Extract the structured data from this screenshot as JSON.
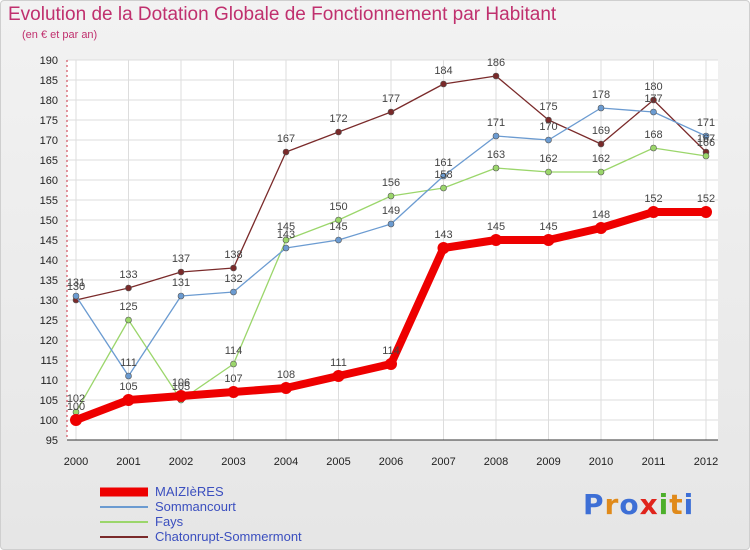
{
  "colors": {
    "title": "#c0306e",
    "legend_text": "#3b4fbf"
  },
  "logo": {
    "text": "Proxiti",
    "letter_colors": [
      "#3d6fd6",
      "#e08a1a",
      "#3d6fd6",
      "#e0241c",
      "#4caf2a",
      "#e08a1a",
      "#3d6fd6"
    ]
  },
  "chart_data": {
    "type": "line",
    "title": "Evolution de la Dotation Globale de Fonctionnement par Habitant",
    "subtitle": "(en € et par an)",
    "xlabel": "",
    "ylabel": "",
    "x": [
      "2000",
      "2001",
      "2002",
      "2003",
      "2004",
      "2005",
      "2006",
      "2007",
      "2008",
      "2009",
      "2010",
      "2011",
      "2012"
    ],
    "ylim": [
      95,
      190
    ],
    "yticks": [
      "95",
      "100",
      "105",
      "110",
      "115",
      "120",
      "125",
      "130",
      "135",
      "140",
      "145",
      "150",
      "155",
      "160",
      "165",
      "170",
      "175",
      "180",
      "185",
      "190"
    ],
    "grid": true,
    "legend_position": "bottom-left",
    "series": [
      {
        "name": "MAIZIèRES",
        "color": "#ee0000",
        "thick": true,
        "values": [
          100,
          105,
          106,
          107,
          108,
          111,
          114,
          143,
          145,
          145,
          148,
          152,
          152
        ],
        "labels": [
          "100",
          "105",
          "106",
          "107",
          "108",
          "111",
          "114",
          "143",
          "145",
          "145",
          "148",
          "152",
          "152"
        ]
      },
      {
        "name": "Sommancourt",
        "color": "#6b9bd1",
        "thick": false,
        "values": [
          131,
          111,
          131,
          132,
          143,
          145,
          149,
          161,
          171,
          170,
          178,
          177,
          171
        ],
        "labels": [
          "131",
          "111",
          "131",
          "132",
          "143",
          "145",
          "149",
          "161",
          "171",
          "170",
          "178",
          "177",
          "171"
        ]
      },
      {
        "name": "Fays",
        "color": "#9bd66b",
        "thick": false,
        "values": [
          102,
          125,
          105,
          114,
          145,
          150,
          156,
          158,
          163,
          162,
          162,
          168,
          166
        ],
        "labels": [
          "102",
          "125",
          "105",
          "114",
          "145",
          "150",
          "156",
          "158",
          "163",
          "162",
          "162",
          "168",
          "166"
        ]
      },
      {
        "name": "Chatonrupt-Sommermont",
        "color": "#7a2a2a",
        "thick": false,
        "values": [
          130,
          133,
          137,
          138,
          167,
          172,
          177,
          184,
          186,
          175,
          169,
          180,
          167
        ],
        "labels": [
          "130",
          "133",
          "137",
          "138",
          "167",
          "172",
          "177",
          "184",
          "186",
          "175",
          "169",
          "180",
          "167"
        ]
      }
    ]
  }
}
